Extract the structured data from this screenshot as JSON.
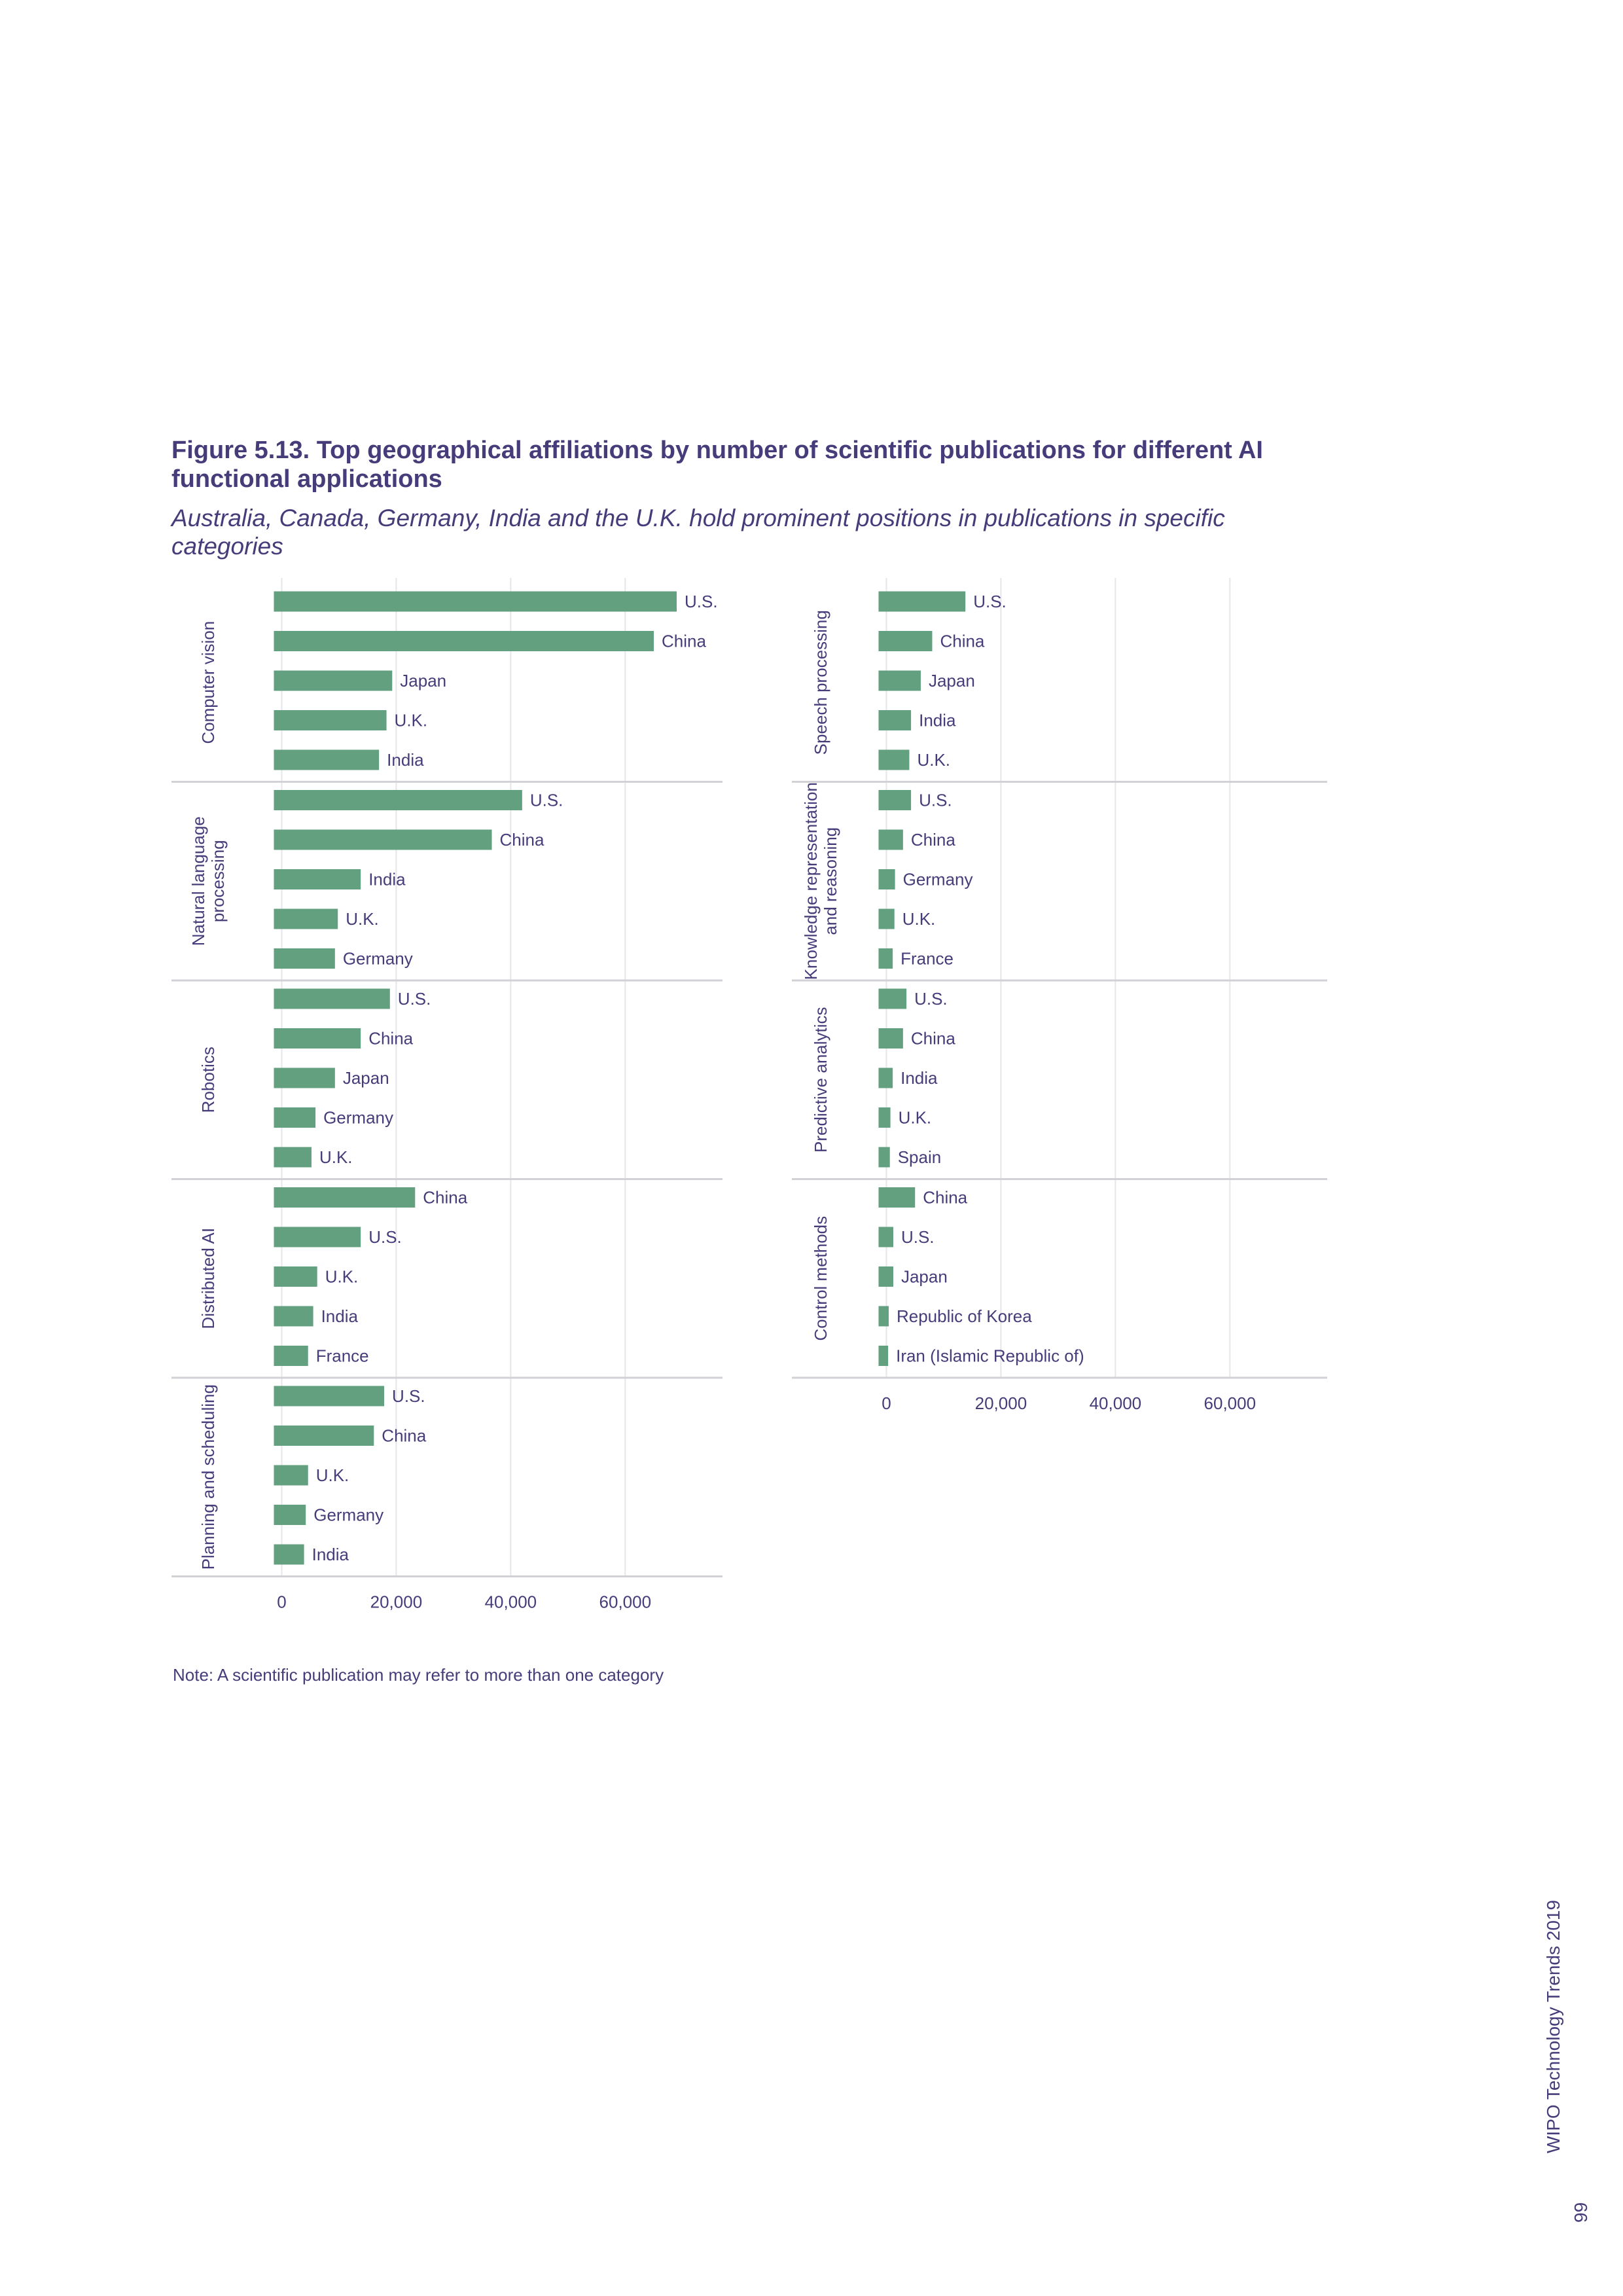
{
  "title": "Figure 5.13. Top geographical affiliations by number of scientific publications for different AI functional applications",
  "subtitle": "Australia, Canada, Germany, India and the U.K. hold prominent positions in publications in specific categories",
  "note": "Note: A scientific publication may refer to more than one category",
  "footer": {
    "page_number": "99",
    "publication": "WIPO Technology Trends 2019"
  },
  "colors": {
    "bar": "#63a07f",
    "text": "#473c7a",
    "grid": "#e6e6ea",
    "divider": "#d2d2d6"
  },
  "chart_data": [
    {
      "type": "bar",
      "orientation": "horizontal",
      "panel": "left",
      "xlim": [
        -6000,
        77000
      ],
      "xticks": [
        0,
        20000,
        40000,
        60000
      ],
      "xtick_labels": [
        "0",
        "20,000",
        "40,000",
        "60,000"
      ],
      "facets": [
        {
          "label": "Computer vision",
          "categories": [
            "U.S.",
            "China",
            "Japan",
            "U.K.",
            "India"
          ],
          "values": [
            69000,
            65000,
            19300,
            18300,
            17000
          ]
        },
        {
          "label": "Natural language processing",
          "categories": [
            "U.S.",
            "China",
            "India",
            "U.K.",
            "Germany"
          ],
          "values": [
            42000,
            36700,
            13800,
            9800,
            9300
          ]
        },
        {
          "label": "Robotics",
          "categories": [
            "U.S.",
            "China",
            "Japan",
            "Germany",
            "U.K."
          ],
          "values": [
            18900,
            13800,
            9300,
            5900,
            5200
          ]
        },
        {
          "label": "Distributed AI",
          "categories": [
            "China",
            "U.S.",
            "U.K.",
            "India",
            "France"
          ],
          "values": [
            23300,
            13800,
            6200,
            5500,
            4600
          ]
        },
        {
          "label": "Planning and scheduling",
          "categories": [
            "U.S.",
            "China",
            "U.K.",
            "Germany",
            "India"
          ],
          "values": [
            17900,
            16100,
            4600,
            4200,
            3900
          ]
        }
      ]
    },
    {
      "type": "bar",
      "orientation": "horizontal",
      "panel": "right",
      "xlim": [
        -6000,
        77000
      ],
      "xticks": [
        0,
        20000,
        40000,
        60000
      ],
      "xtick_labels": [
        "0",
        "20,000",
        "40,000",
        "60,000"
      ],
      "facets": [
        {
          "label": "Speech processing",
          "categories": [
            "U.S.",
            "China",
            "Japan",
            "India",
            "U.K."
          ],
          "values": [
            13800,
            8000,
            6000,
            4300,
            4000
          ]
        },
        {
          "label": "Knowledge representation and reasoning",
          "categories": [
            "U.S.",
            "China",
            "Germany",
            "U.K.",
            "France"
          ],
          "values": [
            4300,
            2900,
            1500,
            1400,
            1100
          ]
        },
        {
          "label": "Predictive analytics",
          "categories": [
            "U.S.",
            "China",
            "India",
            "U.K.",
            "Spain"
          ],
          "values": [
            3500,
            2900,
            1100,
            700,
            600
          ]
        },
        {
          "label": "Control methods",
          "categories": [
            "China",
            "U.S.",
            "Japan",
            "Republic of Korea",
            "Iran (Islamic Republic of)"
          ],
          "values": [
            5000,
            1200,
            1200,
            400,
            300
          ]
        }
      ]
    }
  ]
}
